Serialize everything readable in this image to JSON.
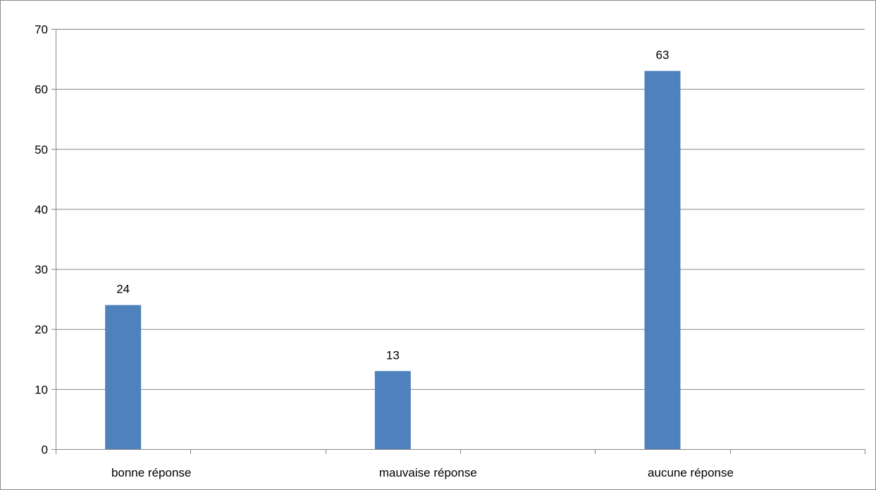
{
  "chart_data": {
    "type": "bar",
    "categories": [
      "bonne réponse",
      "mauvaise réponse",
      "aucune réponse"
    ],
    "values": [
      24,
      13,
      63
    ],
    "data_labels": [
      "24",
      "13",
      "63"
    ],
    "title": "",
    "xlabel": "",
    "ylabel": "",
    "ylim": [
      0,
      70
    ],
    "yticks": [
      0,
      10,
      20,
      30,
      40,
      50,
      60,
      70
    ],
    "ytick_labels": [
      "0",
      "10",
      "20",
      "30",
      "40",
      "50",
      "60",
      "70"
    ],
    "grid": true,
    "legend": "none",
    "bar_color": "#4f81bd",
    "grid_color": "#868686"
  }
}
